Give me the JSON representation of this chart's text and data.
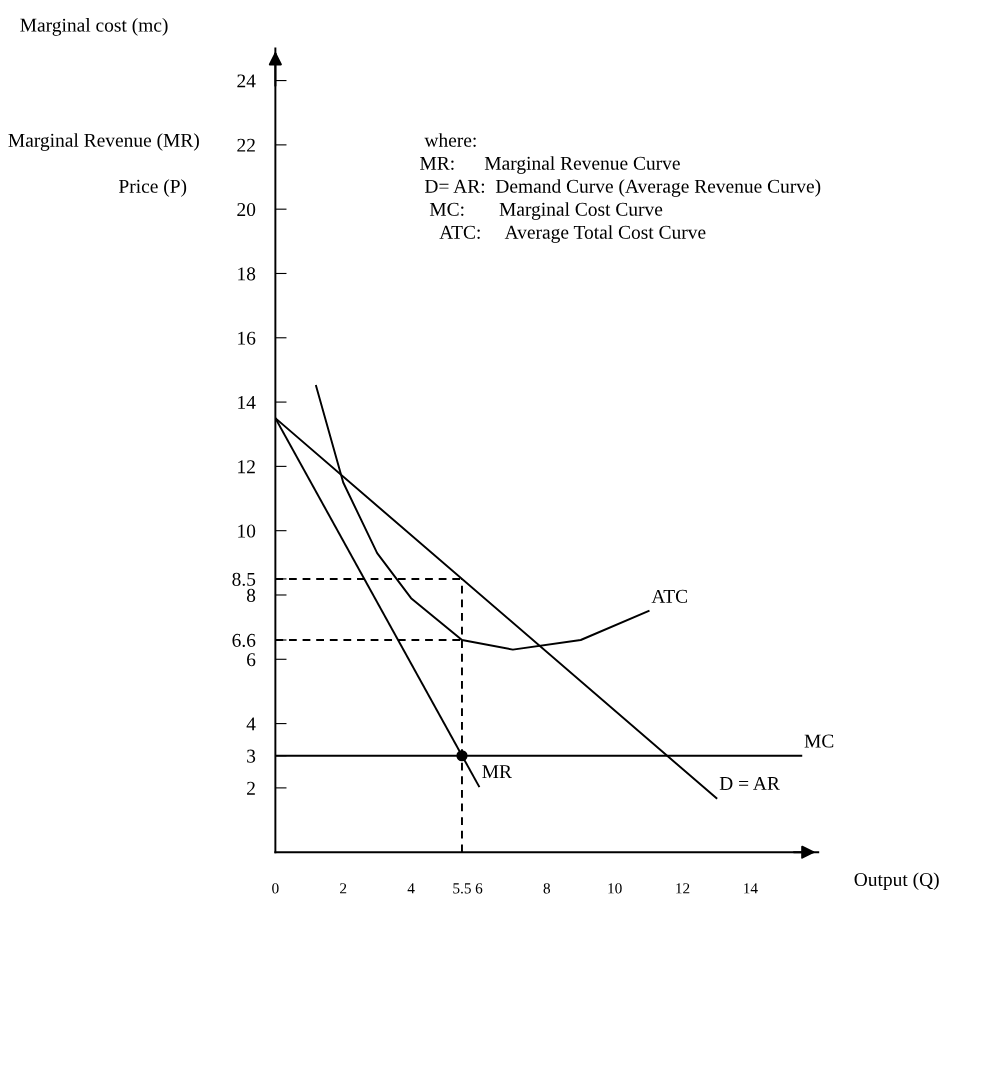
{
  "chart_data": {
    "type": "line",
    "ylabel": "Marginal cost (mc)",
    "xlabel": "Output (Q)",
    "xlim": [
      0,
      16
    ],
    "ylim": [
      0,
      25
    ],
    "xticks": [
      0,
      2,
      4,
      5.5,
      6,
      8,
      10,
      12,
      14
    ],
    "yticks": [
      2,
      3,
      4,
      6,
      6.6,
      8,
      8.5,
      10,
      12,
      14,
      16,
      18,
      20,
      22,
      24
    ],
    "grid": false,
    "legend": false,
    "series": [
      {
        "color": "#000000",
        "x": [
          0,
          6
        ],
        "values": [
          13.5,
          2.05
        ]
      },
      {
        "color": "#000000",
        "x": [
          0,
          13
        ],
        "values": [
          13.5,
          1.68
        ]
      },
      {
        "color": "#000000",
        "x": [
          0,
          15.5
        ],
        "values": [
          3,
          3
        ]
      },
      {
        "color": "#000000",
        "x": [
          1.2,
          2,
          3,
          4,
          5.5,
          7,
          9,
          11
        ],
        "values": [
          14.5,
          11.5,
          9.3,
          7.9,
          6.6,
          6.3,
          6.6,
          7.5
        ]
      },
      {
        "type": "line",
        "line_style": "dashed",
        "color": "#000000",
        "x": [
          0,
          5.5
        ],
        "values": [
          8.5,
          8.5
        ]
      },
      {
        "type": "line",
        "line_style": "dashed",
        "color": "#000000",
        "x": [
          0,
          5.5
        ],
        "values": [
          6.6,
          6.6
        ]
      },
      {
        "type": "line",
        "line_style": "dashed",
        "color": "#000000",
        "x": [
          5.5,
          5.5
        ],
        "values": [
          0,
          8.5
        ]
      },
      {
        "type": "scatter",
        "marker": "circle",
        "color": "#000000",
        "x": [
          5.5
        ],
        "values": [
          3
        ]
      }
    ],
    "annotations": [
      "Marginal Revenue (MR)",
      "Price (P)",
      "where:",
      "MR:      Marginal Revenue Curve",
      "D= AR:  Demand Curve (Average Revenue Curve)",
      "MC:       Marginal Cost Curve",
      "ATC:     Average Total Cost Curve",
      {
        "text": "ATC",
        "x": 11,
        "y": 7.5
      },
      {
        "text": "MC",
        "x": 15.5,
        "y": 3
      },
      {
        "text": "MR",
        "x": 6,
        "y": 2.05
      },
      {
        "text": "D = AR",
        "x": 13,
        "y": 1.68
      }
    ]
  }
}
